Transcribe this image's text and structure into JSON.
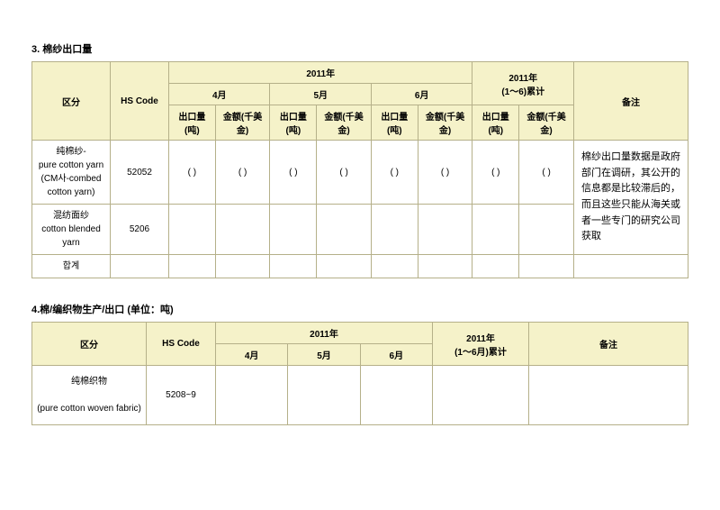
{
  "table3": {
    "title": "3. 棉纱出口量",
    "headers": {
      "category": "区分",
      "hscode": "HS Code",
      "year": "2011年",
      "cumulative": "2011年\n(1～6)累计",
      "remark": "备注",
      "m4": "4月",
      "m5": "5月",
      "m6": "6月",
      "export_qty": "出口量(吨)",
      "export_amt": "金额(千美金)"
    },
    "rows": [
      {
        "label": "纯棉纱-\npure cotton yarn\n(CM사-combed cotton yarn)",
        "hscode": "52052",
        "m4q": "( )",
        "m4a": "( )",
        "m5q": "( )",
        "m5a": "( )",
        "m6q": "( )",
        "m6a": "( )",
        "cq": "( )",
        "ca": "( )"
      },
      {
        "label": "混纺面纱\ncotton blended yarn",
        "hscode": "5206",
        "m4q": "",
        "m4a": "",
        "m5q": "",
        "m5a": "",
        "m6q": "",
        "m6a": "",
        "cq": "",
        "ca": ""
      },
      {
        "label": "합계",
        "hscode": "",
        "m4q": "",
        "m4a": "",
        "m5q": "",
        "m5a": "",
        "m6q": "",
        "m6a": "",
        "cq": "",
        "ca": ""
      }
    ],
    "note": "棉纱出口量数据是政府部门在调研，其公开的信息都是比较滞后的，而且这些只能从海关或者一些专门的研究公司获取"
  },
  "table4": {
    "title": "4.棉/编织物生产/出口 (单位：吨)",
    "headers": {
      "category": "区分",
      "hscode": "HS Code",
      "year": "2011年",
      "cumulative": "2011年\n(1～6月)累计",
      "remark": "备注",
      "m4": "4月",
      "m5": "5月",
      "m6": "6月"
    },
    "rows": [
      {
        "label": "纯棉织物\n\n(pure cotton woven fabric)",
        "hscode": "5208~9",
        "m4": "",
        "m5": "",
        "m6": "",
        "cum": "",
        "remark": ""
      }
    ]
  }
}
